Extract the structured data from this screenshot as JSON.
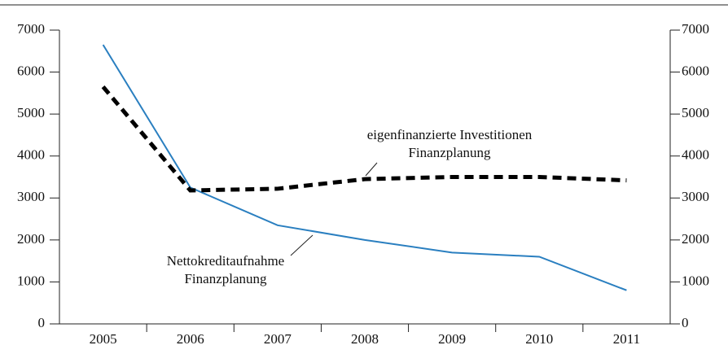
{
  "chart_data": {
    "type": "line",
    "categories": [
      "2005",
      "2006",
      "2007",
      "2008",
      "2009",
      "2010",
      "2011"
    ],
    "series": [
      {
        "name": "Nettokreditaufnahme Finanzplanung",
        "color": "#2a7fc0",
        "style": "solid",
        "values": [
          6650,
          3250,
          2350,
          2000,
          1700,
          1600,
          800
        ]
      },
      {
        "name": "eigenfinanzierte Investitionen Finanzplanung",
        "color": "#000000",
        "style": "dashed",
        "values": [
          5650,
          3180,
          3220,
          3450,
          3500,
          3500,
          3420
        ]
      }
    ],
    "annotations": [
      {
        "lines": [
          "Nettokreditaufnahme",
          "Finanzplanung"
        ]
      },
      {
        "lines": [
          "eigenfinanzierte Investitionen",
          "Finanzplanung"
        ]
      }
    ],
    "ylim": [
      0,
      7000
    ],
    "yticks": [
      0,
      1000,
      2000,
      3000,
      4000,
      5000,
      6000,
      7000
    ],
    "y2lim": [
      0,
      7000
    ],
    "y2ticks": [
      0,
      1000,
      2000,
      3000,
      4000,
      5000,
      6000,
      7000
    ],
    "legend": false
  }
}
